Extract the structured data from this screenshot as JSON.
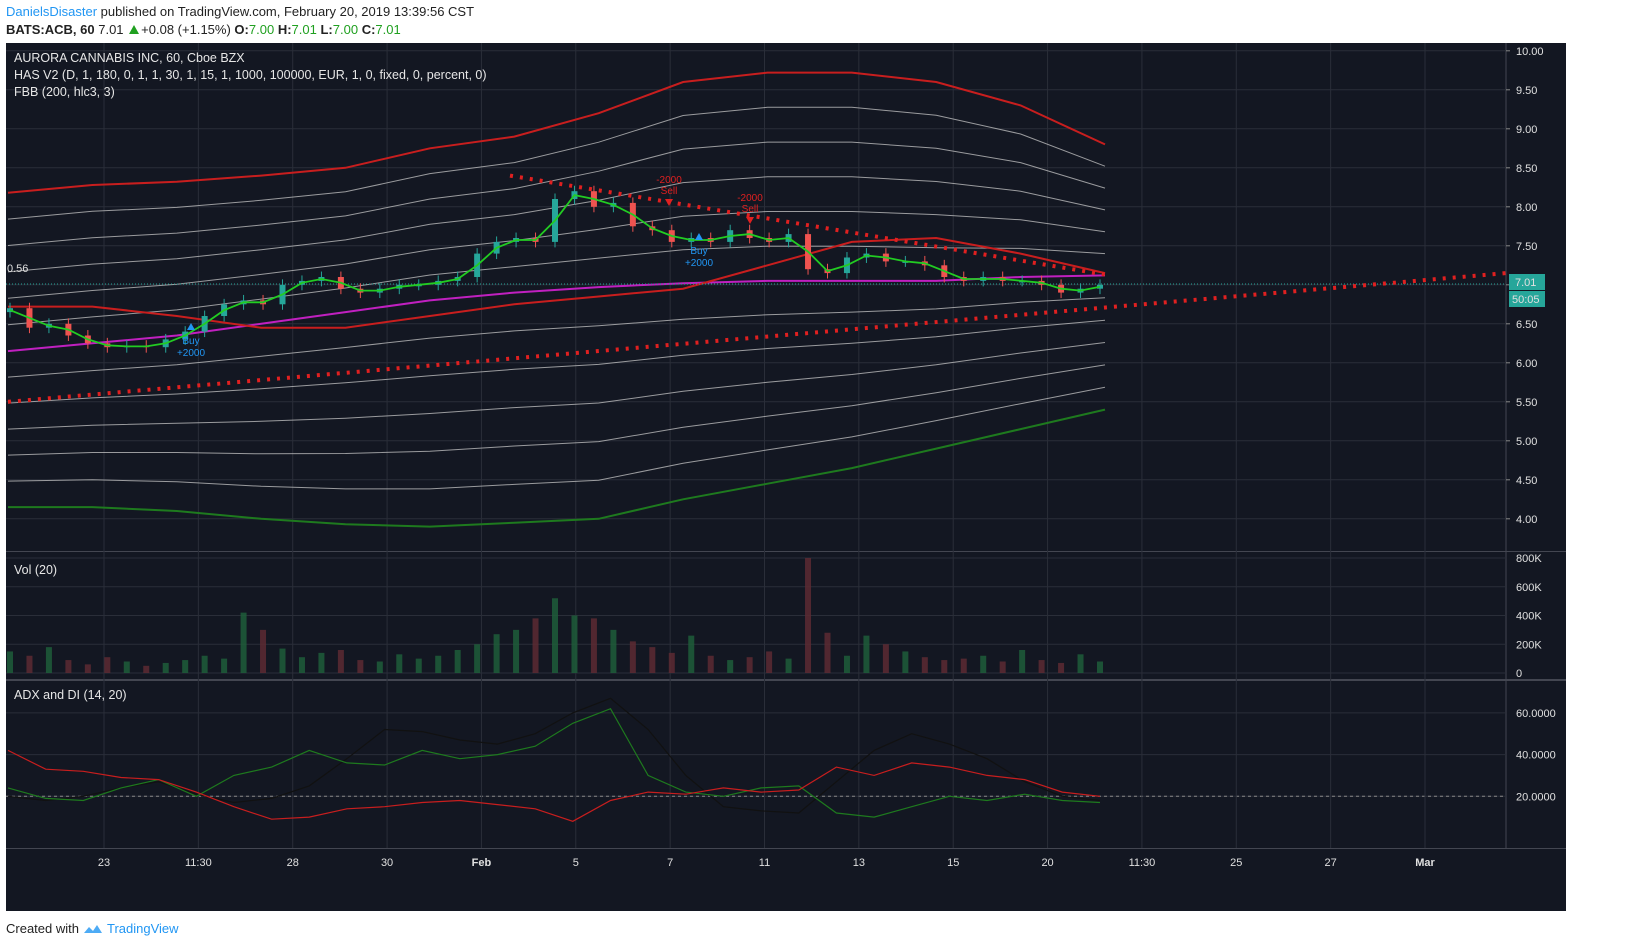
{
  "header": {
    "user": "DanielsDisaster",
    "published": " published on TradingView.com, February 20, 2019 13:39:56 CST",
    "symbol": "BATS:ACB, 60",
    "price": "7.01",
    "change": "+0.08 (+1.15%)",
    "open_label": "O:",
    "open": "7.00",
    "high_label": "H:",
    "high": "7.01",
    "low_label": "L:",
    "low": "7.00",
    "close_label": "C:",
    "close": "7.01"
  },
  "footer": {
    "created": "Created with",
    "brand": "TradingView"
  },
  "colors": {
    "bg": "#131722",
    "grid": "#2a2e39",
    "up": "#26a69a",
    "down": "#ef5350",
    "upper_band": "#c81e1e",
    "lower_band": "#1e7a1e",
    "mid_band": "#c020c0",
    "ha_line": "#22cc22",
    "dots": "#e02020"
  },
  "legend": {
    "price_title": "AURORA CANNABIS INC, 60, Cboe BZX",
    "has": "HAS V2 (D, 1, 180, 0, 1, 1, 30, 1, 15, 1, 1000, 100000, EUR, 1, 0, fixed, 0, percent, 0)",
    "fbb": "FBB (200, hlc3, 3)",
    "vol": "Vol (20)",
    "adx": "ADX and DI (14, 20)"
  },
  "price_badge": "7.01",
  "time_badge": "50:05",
  "signals": [
    {
      "type": "sell",
      "label": "Sell",
      "qty": "-2000"
    },
    {
      "type": "sell",
      "label": "Sell",
      "qty": "-2000"
    },
    {
      "type": "buy",
      "label": "Buy",
      "qty": "+2000"
    },
    {
      "type": "buy",
      "label": "Buy",
      "qty": "+2000"
    }
  ],
  "edge_label": "0.56",
  "chart_data": [
    {
      "type": "candlestick",
      "title": "AURORA CANNABIS INC, 60, Cboe BZX",
      "y_ticks": [
        "10.00",
        "9.50",
        "9.00",
        "8.50",
        "8.00",
        "7.50",
        "7.00",
        "6.50",
        "6.00",
        "5.50",
        "5.00",
        "4.50",
        "4.00"
      ],
      "ylim": [
        3.6,
        10.1
      ],
      "x_ticks": [
        "23",
        "11:30",
        "28",
        "30",
        "Feb",
        "5",
        "7",
        "11",
        "13",
        "15",
        "20",
        "11:30",
        "25",
        "27",
        "Mar"
      ],
      "last_price": 7.01,
      "close_series": [
        6.7,
        6.45,
        6.5,
        6.35,
        6.25,
        6.2,
        6.22,
        6.2,
        6.3,
        6.4,
        6.6,
        6.75,
        6.8,
        6.75,
        7.0,
        7.05,
        7.1,
        6.95,
        6.9,
        6.95,
        7.0,
        7.0,
        7.05,
        7.1,
        7.4,
        7.55,
        7.6,
        7.55,
        8.1,
        8.2,
        8.0,
        8.05,
        7.75,
        7.7,
        7.55,
        7.6,
        7.55,
        7.7,
        7.6,
        7.55,
        7.65,
        7.2,
        7.15,
        7.35,
        7.4,
        7.3,
        7.3,
        7.25,
        7.1,
        7.05,
        7.1,
        7.05,
        7.05,
        7.0,
        6.9,
        6.95,
        7.0
      ],
      "upper_band": [
        8.18,
        8.28,
        8.32,
        8.4,
        8.5,
        8.75,
        8.9,
        9.2,
        9.6,
        9.72,
        9.72,
        9.6,
        9.3,
        8.8
      ],
      "mid_band": [
        6.15,
        6.25,
        6.35,
        6.5,
        6.65,
        6.8,
        6.9,
        6.97,
        7.02,
        7.05,
        7.05,
        7.05,
        7.1,
        7.12
      ],
      "lower_band": [
        4.15,
        4.15,
        4.1,
        4.0,
        3.93,
        3.9,
        3.95,
        4.0,
        4.25,
        4.45,
        4.65,
        4.9,
        5.15,
        5.4
      ],
      "resistance_dots": {
        "from": [
          8.4,
          8.4
        ],
        "to": [
          7.1,
          7.1
        ]
      },
      "support_dots": {
        "from": [
          5.5,
          5.5
        ],
        "to": [
          7.15,
          7.15
        ]
      }
    },
    {
      "type": "bar",
      "title": "Vol (20)",
      "y_ticks": [
        "800K",
        "600K",
        "400K",
        "200K",
        "0"
      ],
      "ylim": [
        0,
        800000
      ]
    },
    {
      "type": "line",
      "title": "ADX and DI (14, 20)",
      "y_ticks": [
        "60.0000",
        "40.0000",
        "20.0000"
      ],
      "ylim": [
        0,
        70
      ],
      "threshold": 20,
      "series": [
        {
          "color": "#111111",
          "values": [
            20,
            18,
            20,
            24,
            27,
            21,
            17,
            19,
            25,
            38,
            52,
            51,
            47,
            45,
            50,
            60,
            67,
            52,
            30,
            15,
            13,
            12,
            27,
            42,
            50,
            45,
            38,
            27,
            20,
            18
          ]
        },
        {
          "color": "#1e7a1e",
          "values": [
            24,
            19,
            18,
            24,
            28,
            20,
            30,
            34,
            42,
            36,
            35,
            42,
            38,
            40,
            44,
            55,
            62,
            30,
            22,
            20,
            24,
            25,
            12,
            10,
            15,
            20,
            18,
            21,
            18,
            17
          ]
        },
        {
          "color": "#c81e1e",
          "values": [
            42,
            33,
            32,
            29,
            28,
            22,
            15,
            9,
            10,
            14,
            15,
            17,
            18,
            16,
            14,
            8,
            18,
            22,
            21,
            24,
            22,
            23,
            34,
            30,
            36,
            34,
            30,
            28,
            22,
            20
          ]
        }
      ]
    }
  ]
}
